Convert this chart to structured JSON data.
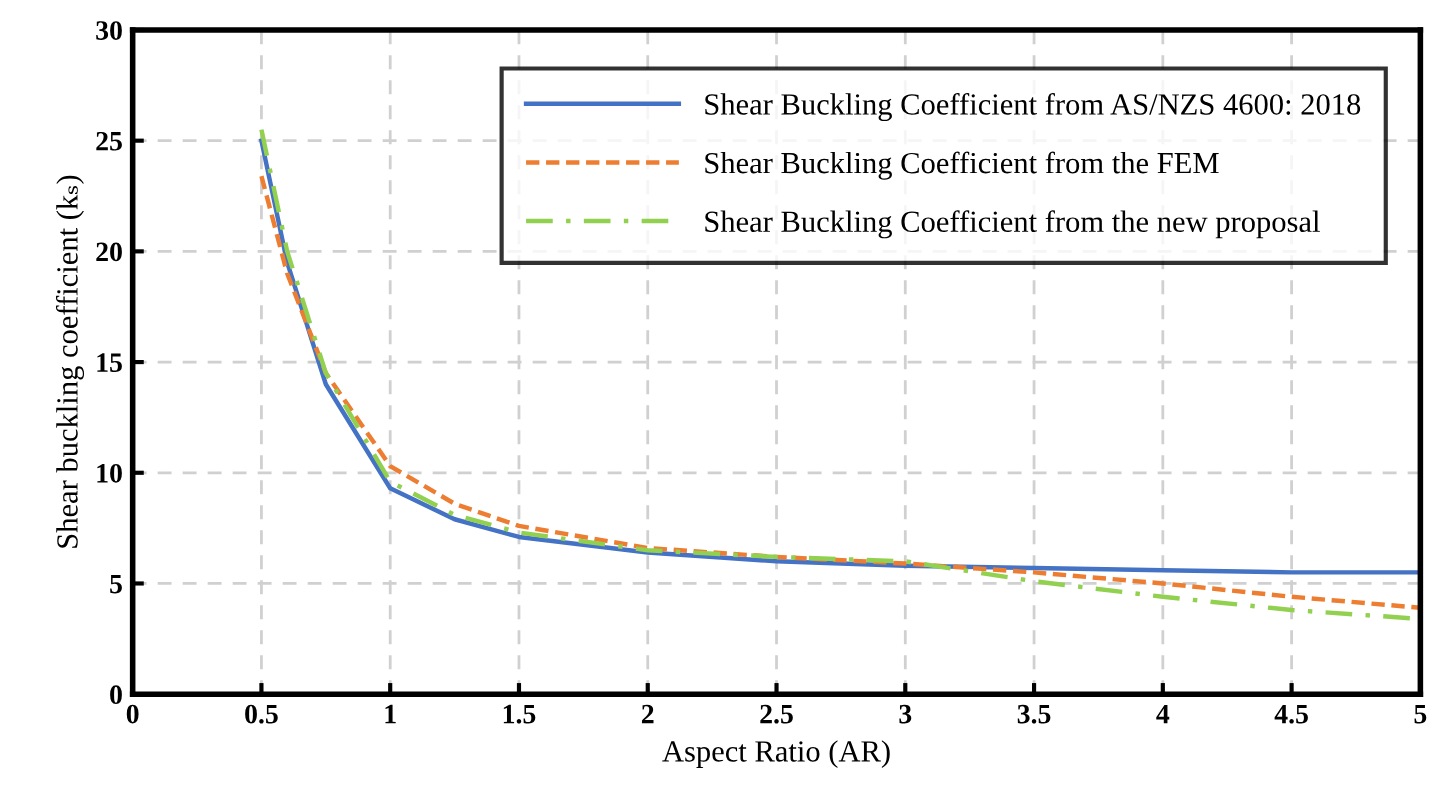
{
  "chart_data": {
    "type": "line",
    "xlabel": "Aspect Ratio (AR)",
    "ylabel": "Shear buckling coefficient (kₛ)",
    "xlim": [
      0,
      5
    ],
    "ylim": [
      0,
      30
    ],
    "xticks": [
      0,
      0.5,
      1,
      1.5,
      2,
      2.5,
      3,
      3.5,
      4,
      4.5,
      5
    ],
    "yticks": [
      0,
      5,
      10,
      15,
      20,
      25,
      30
    ],
    "grid": true,
    "legend": "top right",
    "series": [
      {
        "name": "Shear Buckling Coefficient from AS/NZS 4600: 2018",
        "color": "#4472c4",
        "line_style": "solid",
        "x": [
          0.5,
          0.6,
          0.75,
          1,
          1.25,
          1.5,
          2,
          2.5,
          3,
          3.5,
          4,
          4.5,
          5
        ],
        "values": [
          25,
          19.5,
          14,
          9.3,
          7.9,
          7.1,
          6.4,
          6.0,
          5.8,
          5.7,
          5.6,
          5.5,
          5.5
        ]
      },
      {
        "name": "Shear Buckling Coefficient from the FEM",
        "color": "#ed7d31",
        "line_style": "dashed",
        "x": [
          0.5,
          0.6,
          0.75,
          1,
          1.25,
          1.5,
          2,
          2.5,
          3,
          3.5,
          4,
          4.5,
          5
        ],
        "values": [
          23.4,
          19,
          14.5,
          10.3,
          8.6,
          7.6,
          6.6,
          6.2,
          5.9,
          5.5,
          5.0,
          4.4,
          3.9
        ]
      },
      {
        "name": "Shear Buckling Coefficient from the new proposal",
        "color": "#92d050",
        "line_style": "dashdot",
        "x": [
          0.5,
          0.6,
          0.75,
          1,
          1.25,
          1.5,
          2,
          2.5,
          3,
          3.5,
          4,
          4.5,
          5
        ],
        "values": [
          25.5,
          20,
          14.5,
          9.6,
          8.1,
          7.3,
          6.5,
          6.2,
          6.0,
          5.1,
          4.4,
          3.8,
          3.4
        ]
      }
    ]
  }
}
